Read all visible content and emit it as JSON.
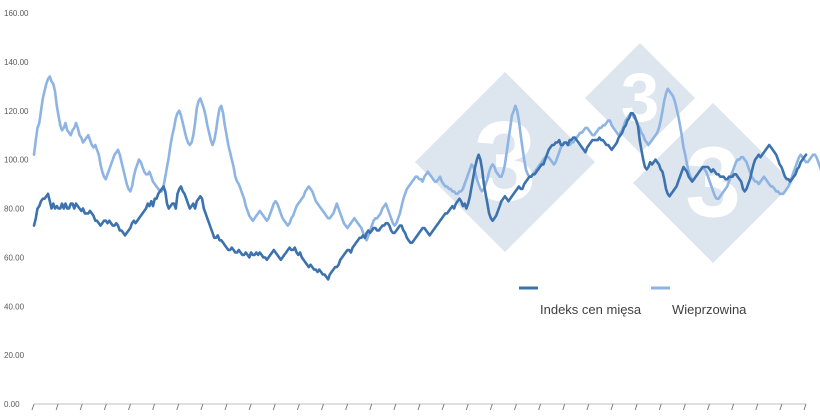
{
  "chart_data": {
    "type": "line",
    "title": "",
    "xlabel": "",
    "ylabel": "",
    "ylim": [
      0,
      160
    ],
    "yticks": [
      "0.00",
      "20.00",
      "40.00",
      "60.00",
      "80.00",
      "100.00",
      "120.00",
      "140.00",
      "160.00"
    ],
    "grid": false,
    "legend_position": "bottom-right",
    "watermark": "333",
    "watermark_color": "#dde5ee",
    "series": [
      {
        "name": "Indeks cen mięsa",
        "color": "#3c72ad",
        "values": [
          73,
          76,
          80,
          81,
          83,
          84,
          84,
          85,
          86,
          83,
          80,
          82,
          80,
          81,
          80,
          80,
          82,
          80,
          82,
          80,
          80,
          82,
          82,
          80,
          82,
          81,
          80,
          79,
          80,
          78,
          78,
          78,
          79,
          78,
          77,
          75,
          75,
          74,
          73,
          74,
          75,
          75,
          74,
          75,
          74,
          73,
          73,
          74,
          73,
          71,
          71,
          70,
          69,
          70,
          71,
          72,
          74,
          75,
          74,
          75,
          76,
          77,
          78,
          79,
          80,
          82,
          81,
          83,
          81,
          84,
          84,
          86,
          87,
          88,
          89,
          87,
          82,
          80,
          81,
          82,
          82,
          80,
          86,
          88,
          89,
          87,
          86,
          84,
          82,
          80,
          81,
          82,
          80,
          83,
          84,
          85,
          84,
          80,
          78,
          76,
          74,
          72,
          70,
          68,
          68,
          69,
          67,
          67,
          66,
          65,
          64,
          63,
          63,
          64,
          63,
          62,
          62,
          63,
          62,
          61,
          61,
          62,
          61,
          60,
          62,
          61,
          61,
          62,
          61,
          62,
          61,
          60,
          60,
          59,
          60,
          61,
          62,
          63,
          62,
          61,
          60,
          59,
          60,
          61,
          62,
          63,
          64,
          63,
          63,
          64,
          62,
          61,
          62,
          60,
          59,
          58,
          57,
          56,
          57,
          56,
          55,
          55,
          54,
          55,
          54,
          53,
          53,
          52,
          51,
          53,
          54,
          55,
          56,
          56,
          57,
          59,
          60,
          61,
          62,
          63,
          63,
          62,
          64,
          65,
          66,
          67,
          68,
          68,
          69,
          68,
          70,
          71,
          70,
          71,
          72,
          72,
          71,
          71,
          72,
          73,
          73,
          74,
          74,
          73,
          71,
          70,
          70,
          71,
          72,
          73,
          73,
          71,
          70,
          68,
          67,
          66,
          66,
          67,
          68,
          69,
          70,
          71,
          72,
          72,
          71,
          70,
          69,
          70,
          71,
          72,
          73,
          74,
          75,
          76,
          77,
          78,
          78,
          79,
          80,
          81,
          80,
          82,
          83,
          84,
          83,
          81,
          82,
          80,
          82,
          85,
          89,
          93,
          97,
          100,
          102,
          100,
          96,
          90,
          86,
          82,
          78,
          76,
          75,
          76,
          77,
          79,
          81,
          83,
          84,
          85,
          84,
          83,
          84,
          85,
          86,
          87,
          88,
          89,
          88,
          88,
          90,
          91,
          92,
          93,
          93,
          94,
          94,
          95,
          96,
          97,
          98,
          98,
          100,
          102,
          104,
          105,
          106,
          106,
          107,
          107,
          108,
          106,
          106,
          107,
          107,
          106,
          108,
          108,
          109,
          109,
          108,
          107,
          106,
          105,
          104,
          103,
          105,
          106,
          107,
          108,
          108,
          108,
          108,
          109,
          108,
          108,
          107,
          106,
          106,
          105,
          104,
          105,
          106,
          107,
          109,
          110,
          111,
          113,
          114,
          116,
          117,
          119,
          119,
          118,
          116,
          114,
          108,
          104,
          100,
          97,
          96,
          97,
          99,
          98,
          99,
          100,
          99,
          98,
          96,
          95,
          92,
          88,
          86,
          85,
          86,
          87,
          88,
          89,
          91,
          93,
          95,
          97,
          96,
          95,
          93,
          92,
          91,
          92,
          93,
          94,
          95,
          96,
          97,
          97,
          97,
          97,
          96,
          95,
          96,
          95,
          94,
          94,
          93,
          93,
          93,
          92,
          92,
          93,
          93,
          93,
          94,
          94,
          93,
          92,
          91,
          88,
          87,
          88,
          90,
          92,
          95,
          98,
          100,
          101,
          102,
          101,
          102,
          103,
          104,
          105,
          106,
          105,
          104,
          103,
          102,
          100,
          98,
          97,
          95,
          93,
          92,
          92,
          91,
          92,
          93,
          94,
          96,
          97,
          99,
          100,
          101,
          102
        ]
      },
      {
        "name": "Wieprzowina",
        "color": "#8eb4e3",
        "values": [
          102,
          108,
          113,
          115,
          120,
          125,
          128,
          131,
          133,
          134,
          132,
          131,
          128,
          122,
          118,
          114,
          112,
          113,
          115,
          112,
          111,
          110,
          112,
          113,
          115,
          113,
          110,
          109,
          107,
          108,
          109,
          110,
          108,
          106,
          105,
          106,
          104,
          102,
          98,
          95,
          93,
          92,
          94,
          96,
          98,
          100,
          102,
          103,
          104,
          102,
          99,
          96,
          93,
          90,
          88,
          87,
          89,
          93,
          96,
          98,
          100,
          99,
          97,
          95,
          94,
          94,
          95,
          93,
          91,
          90,
          89,
          88,
          87,
          87,
          89,
          93,
          97,
          101,
          106,
          110,
          113,
          117,
          119,
          120,
          118,
          115,
          112,
          109,
          107,
          106,
          107,
          110,
          115,
          121,
          124,
          125,
          123,
          121,
          118,
          114,
          111,
          108,
          106,
          108,
          112,
          117,
          121,
          122,
          119,
          114,
          110,
          106,
          103,
          100,
          97,
          93,
          91,
          90,
          88,
          86,
          84,
          81,
          79,
          77,
          76,
          75,
          76,
          77,
          78,
          79,
          78,
          77,
          76,
          75,
          76,
          78,
          80,
          82,
          83,
          82,
          80,
          78,
          76,
          75,
          74,
          73,
          74,
          76,
          77,
          79,
          81,
          82,
          83,
          84,
          85,
          87,
          88,
          89,
          88,
          87,
          85,
          83,
          82,
          81,
          80,
          79,
          78,
          77,
          76,
          76,
          77,
          78,
          80,
          82,
          80,
          78,
          76,
          74,
          73,
          72,
          73,
          74,
          75,
          76,
          75,
          74,
          73,
          72,
          70,
          68,
          67,
          69,
          71,
          73,
          75,
          76,
          76,
          77,
          78,
          80,
          81,
          82,
          80,
          78,
          76,
          74,
          73,
          74,
          76,
          78,
          81,
          84,
          86,
          88,
          89,
          90,
          91,
          92,
          93,
          93,
          92,
          92,
          91,
          93,
          94,
          95,
          94,
          93,
          92,
          91,
          91,
          92,
          93,
          91,
          90,
          89,
          89,
          88,
          88,
          87,
          87,
          86,
          86,
          87,
          87,
          88,
          90,
          92,
          94,
          96,
          98,
          97,
          95,
          92,
          90,
          88,
          87,
          88,
          90,
          92,
          95,
          97,
          98,
          97,
          95,
          94,
          93,
          93,
          95,
          98,
          103,
          108,
          113,
          118,
          120,
          122,
          120,
          116,
          110,
          105,
          100,
          96,
          94,
          93,
          93,
          94,
          95,
          96,
          97,
          98,
          99,
          100,
          101,
          101,
          101,
          100,
          99,
          98,
          99,
          101,
          103,
          105,
          106,
          107,
          107,
          106,
          106,
          107,
          107,
          108,
          109,
          110,
          111,
          111,
          112,
          113,
          113,
          112,
          111,
          110,
          110,
          111,
          112,
          113,
          113,
          114,
          114,
          115,
          116,
          116,
          114,
          113,
          112,
          111,
          110,
          111,
          112,
          114,
          116,
          117,
          118,
          119,
          118,
          117,
          116,
          114,
          113,
          111,
          110,
          108,
          107,
          106,
          107,
          108,
          109,
          110,
          111,
          113,
          116,
          120,
          124,
          127,
          129,
          128,
          127,
          126,
          124,
          121,
          118,
          114,
          110,
          105,
          102,
          98,
          95,
          93,
          92,
          92,
          93,
          94,
          95,
          96,
          97,
          96,
          95,
          93,
          91,
          89,
          87,
          85,
          84,
          84,
          85,
          86,
          87,
          88,
          89,
          91,
          93,
          95,
          97,
          99,
          100,
          100,
          101,
          101,
          100,
          99,
          97,
          95,
          93,
          92,
          91,
          91,
          90,
          91,
          92,
          93,
          92,
          91,
          90,
          89,
          89,
          88,
          87,
          87,
          86,
          86,
          86,
          87,
          88,
          89,
          91,
          93,
          95,
          97,
          99,
          101,
          102,
          101,
          100,
          99,
          99,
          100,
          101,
          102,
          102,
          101,
          99,
          97,
          95,
          93,
          91,
          90,
          89,
          89,
          90,
          91,
          92,
          93,
          94,
          95,
          96,
          97
        ]
      }
    ]
  }
}
